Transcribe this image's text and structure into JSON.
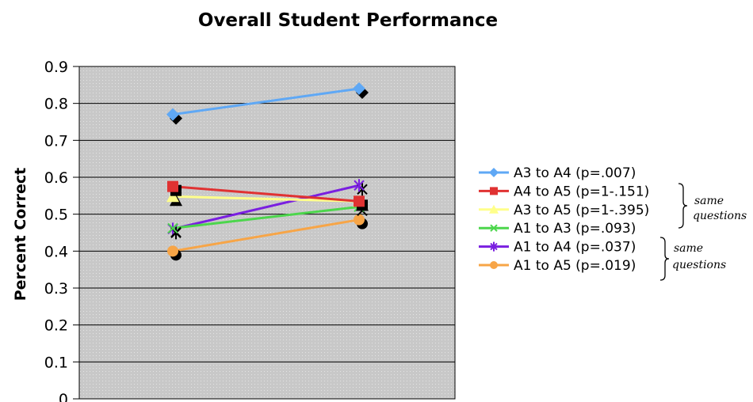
{
  "chart_data": {
    "type": "line",
    "title": "Overall Student Performance",
    "ylabel": "Percent Correct",
    "xlabel": "",
    "x": [
      1,
      2
    ],
    "ylim": [
      0,
      0.9
    ],
    "yticks": [
      "0",
      "0.1",
      "0.2",
      "0.3",
      "0.4",
      "0.5",
      "0.6",
      "0.7",
      "0.8",
      "0.9"
    ],
    "grid": true,
    "legend_position": "right",
    "series": [
      {
        "name": "A3 to A4 (p=.007)",
        "values": [
          0.77,
          0.84
        ],
        "color": "#5fa8f5",
        "marker": "diamond"
      },
      {
        "name": "A4 to A5 (p=1-.151)",
        "values": [
          0.575,
          0.535
        ],
        "color": "#e03232",
        "marker": "square"
      },
      {
        "name": "A3 to A5 (p=1-.395)",
        "values": [
          0.548,
          0.535
        ],
        "color": "#ffff8a",
        "marker": "triangle"
      },
      {
        "name": "A1 to A3 (p=.093)",
        "values": [
          0.462,
          0.52
        ],
        "color": "#4cd64c",
        "marker": "x"
      },
      {
        "name": "A1 to A4 (p=.037)",
        "values": [
          0.46,
          0.578
        ],
        "color": "#7a1fe0",
        "marker": "star"
      },
      {
        "name": "A1 to A5 (p=.019)",
        "values": [
          0.4,
          0.485
        ],
        "color": "#f7a547",
        "marker": "circle"
      }
    ],
    "annotations": [
      {
        "text_line1": "same",
        "text_line2": "questions",
        "series": [
          1,
          2
        ]
      },
      {
        "text_line1": "same",
        "text_line2": "questions",
        "series": [
          3,
          4
        ]
      }
    ]
  }
}
